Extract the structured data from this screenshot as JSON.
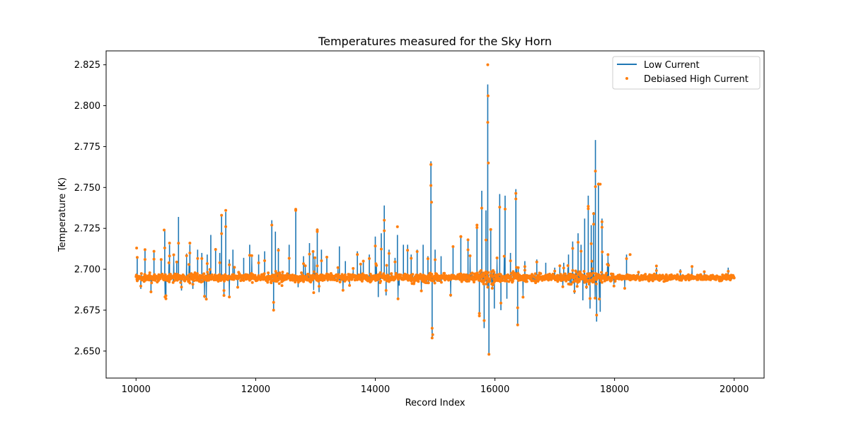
{
  "chart_data": {
    "type": "line",
    "title": "Temperatures measured for the Sky Horn",
    "xlabel": "Record Index",
    "ylabel": "Temperature (K)",
    "xlim": [
      9500,
      20500
    ],
    "ylim": [
      2.6335,
      2.8335
    ],
    "xticks": [
      10000,
      12000,
      14000,
      16000,
      18000,
      20000
    ],
    "yticks": [
      2.65,
      2.675,
      2.7,
      2.725,
      2.75,
      2.775,
      2.8,
      2.825
    ],
    "xtick_labels": [
      "10000",
      "12000",
      "14000",
      "16000",
      "18000",
      "20000"
    ],
    "ytick_labels": [
      "2.650",
      "2.675",
      "2.700",
      "2.725",
      "2.750",
      "2.775",
      "2.800",
      "2.825"
    ],
    "legend_position": "top-right",
    "colors": {
      "low": "#1f77b4",
      "high": "#ff7f0e"
    },
    "baseline": 2.695,
    "series": [
      {
        "name": "Low Current",
        "kind": "line",
        "spikes": [
          [
            10020,
            2.708
          ],
          [
            10080,
            2.688
          ],
          [
            10150,
            2.712
          ],
          [
            10250,
            2.686
          ],
          [
            10300,
            2.711
          ],
          [
            10420,
            2.706
          ],
          [
            10480,
            2.724
          ],
          [
            10500,
            2.683
          ],
          [
            10560,
            2.715
          ],
          [
            10680,
            2.705
          ],
          [
            10710,
            2.732
          ],
          [
            10760,
            2.687
          ],
          [
            10900,
            2.715
          ],
          [
            10950,
            2.688
          ],
          [
            11030,
            2.712
          ],
          [
            11100,
            2.71
          ],
          [
            11190,
            2.709
          ],
          [
            11250,
            2.721
          ],
          [
            11330,
            2.713
          ],
          [
            11400,
            2.71
          ],
          [
            11430,
            2.733
          ],
          [
            11470,
            2.684
          ],
          [
            11500,
            2.735
          ],
          [
            11560,
            2.706
          ],
          [
            11620,
            2.712
          ],
          [
            11700,
            2.689
          ],
          [
            11800,
            2.707
          ],
          [
            11900,
            2.715
          ],
          [
            12050,
            2.709
          ],
          [
            12150,
            2.711
          ],
          [
            12270,
            2.73
          ],
          [
            12300,
            2.675
          ],
          [
            12330,
            2.723
          ],
          [
            12380,
            2.713
          ],
          [
            12450,
            2.692
          ],
          [
            12560,
            2.715
          ],
          [
            12670,
            2.737
          ],
          [
            12710,
            2.689
          ],
          [
            12800,
            2.708
          ],
          [
            12900,
            2.716
          ],
          [
            12960,
            2.711
          ],
          [
            13030,
            2.725
          ],
          [
            13060,
            2.686
          ],
          [
            13100,
            2.712
          ],
          [
            13190,
            2.708
          ],
          [
            13400,
            2.714
          ],
          [
            13500,
            2.705
          ],
          [
            13700,
            2.711
          ],
          [
            13800,
            2.705
          ],
          [
            13900,
            2.709
          ],
          [
            14000,
            2.72
          ],
          [
            14050,
            2.683
          ],
          [
            14100,
            2.722
          ],
          [
            14150,
            2.739
          ],
          [
            14180,
            2.684
          ],
          [
            14230,
            2.712
          ],
          [
            14330,
            2.707
          ],
          [
            14370,
            2.721
          ],
          [
            14400,
            2.69
          ],
          [
            14470,
            2.715
          ],
          [
            14540,
            2.715
          ],
          [
            14600,
            2.709
          ],
          [
            14700,
            2.712
          ],
          [
            14800,
            2.715
          ],
          [
            14880,
            2.708
          ],
          [
            14930,
            2.766
          ],
          [
            14950,
            2.658
          ],
          [
            15000,
            2.712
          ],
          [
            15100,
            2.708
          ],
          [
            15300,
            2.714
          ],
          [
            15430,
            2.72
          ],
          [
            15550,
            2.718
          ],
          [
            15700,
            2.727
          ],
          [
            15740,
            2.671
          ],
          [
            15780,
            2.748
          ],
          [
            15820,
            2.664
          ],
          [
            15850,
            2.736
          ],
          [
            15880,
            2.813
          ],
          [
            15900,
            2.648
          ],
          [
            15930,
            2.725
          ],
          [
            15990,
            2.676
          ],
          [
            16080,
            2.746
          ],
          [
            16100,
            2.675
          ],
          [
            16170,
            2.745
          ],
          [
            16200,
            2.682
          ],
          [
            16260,
            2.71
          ],
          [
            16350,
            2.749
          ],
          [
            16380,
            2.666
          ],
          [
            16500,
            2.705
          ],
          [
            16700,
            2.706
          ],
          [
            16850,
            2.704
          ],
          [
            17000,
            2.701
          ],
          [
            17150,
            2.704
          ],
          [
            17230,
            2.709
          ],
          [
            17300,
            2.717
          ],
          [
            17330,
            2.685
          ],
          [
            17390,
            2.722
          ],
          [
            17440,
            2.715
          ],
          [
            17470,
            2.681
          ],
          [
            17500,
            2.731
          ],
          [
            17530,
            2.688
          ],
          [
            17560,
            2.745
          ],
          [
            17590,
            2.676
          ],
          [
            17610,
            2.727
          ],
          [
            17650,
            2.735
          ],
          [
            17680,
            2.779
          ],
          [
            17700,
            2.668
          ],
          [
            17730,
            2.753
          ],
          [
            17760,
            2.674
          ],
          [
            17790,
            2.731
          ],
          [
            17900,
            2.704
          ],
          [
            18200,
            2.709
          ],
          [
            18400,
            2.699
          ],
          [
            18700,
            2.701
          ],
          [
            19100,
            2.7
          ],
          [
            19500,
            2.699
          ],
          [
            19900,
            2.701
          ]
        ]
      },
      {
        "name": "Debiased High Current",
        "kind": "scatter",
        "highlights": [
          [
            10010,
            2.713
          ],
          [
            10150,
            2.712
          ],
          [
            10300,
            2.711
          ],
          [
            10470,
            2.724
          ],
          [
            10500,
            2.682
          ],
          [
            10560,
            2.716
          ],
          [
            10900,
            2.716
          ],
          [
            11430,
            2.733
          ],
          [
            11500,
            2.736
          ],
          [
            11470,
            2.684
          ],
          [
            12270,
            2.727
          ],
          [
            12300,
            2.675
          ],
          [
            12670,
            2.736
          ],
          [
            13030,
            2.723
          ],
          [
            14150,
            2.73
          ],
          [
            14370,
            2.726
          ],
          [
            14930,
            2.764
          ],
          [
            14940,
            2.741
          ],
          [
            14950,
            2.658
          ],
          [
            14960,
            2.66
          ],
          [
            15430,
            2.72
          ],
          [
            15550,
            2.718
          ],
          [
            15700,
            2.727
          ],
          [
            15740,
            2.673
          ],
          [
            15880,
            2.825
          ],
          [
            15885,
            2.806
          ],
          [
            15890,
            2.765
          ],
          [
            15900,
            2.648
          ],
          [
            16080,
            2.738
          ],
          [
            16350,
            2.743
          ],
          [
            16380,
            2.666
          ],
          [
            17560,
            2.737
          ],
          [
            17650,
            2.734
          ],
          [
            17680,
            2.76
          ],
          [
            17700,
            2.672
          ],
          [
            17730,
            2.752
          ],
          [
            17760,
            2.752
          ],
          [
            17790,
            2.729
          ],
          [
            18260,
            2.709
          ],
          [
            18700,
            2.702
          ]
        ]
      }
    ]
  }
}
